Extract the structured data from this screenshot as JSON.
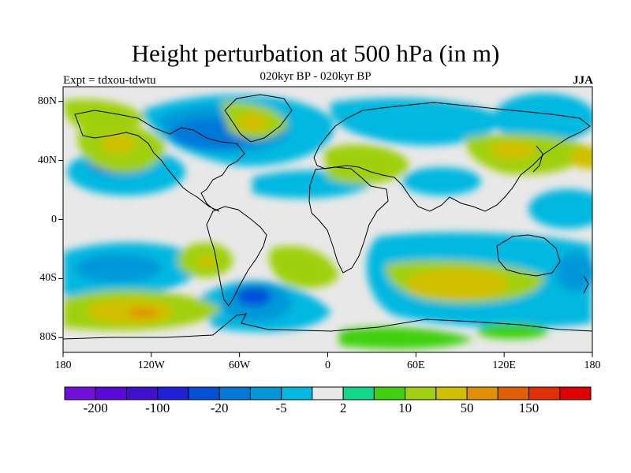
{
  "title": "Height perturbation at 500 hPa (in m)",
  "subtitle": "020kyr BP - 020kyr BP",
  "expt_label": "Expt = tdxou-tdwtu",
  "season": "JJA",
  "map": {
    "projection": "cylindrical equidistant",
    "lon_range": [
      -180,
      180
    ],
    "lat_range": [
      -90,
      90
    ],
    "lat_ticks": [
      {
        "value": 80,
        "label": "80N"
      },
      {
        "value": 40,
        "label": "40N"
      },
      {
        "value": 0,
        "label": "0"
      },
      {
        "value": -40,
        "label": "40S"
      },
      {
        "value": -80,
        "label": "80S"
      }
    ],
    "lon_ticks": [
      {
        "value": -180,
        "label": "180"
      },
      {
        "value": -120,
        "label": "120W"
      },
      {
        "value": -60,
        "label": "60W"
      },
      {
        "value": 0,
        "label": "0"
      },
      {
        "value": 60,
        "label": "60E"
      },
      {
        "value": 120,
        "label": "120E"
      },
      {
        "value": 180,
        "label": "180"
      }
    ],
    "background_color": "#e8e8e8",
    "coastline_color": "#000000"
  },
  "colorbar": {
    "colors": [
      "#7010d8",
      "#5a0ad8",
      "#4010d0",
      "#2020d8",
      "#0050d8",
      "#0078d8",
      "#0098d8",
      "#00b8e0",
      "#e8e8e8",
      "#10d888",
      "#40d010",
      "#a0d010",
      "#d0c000",
      "#e09000",
      "#e06000",
      "#e03000",
      "#e00000"
    ],
    "labels": [
      {
        "boundary": 1,
        "text": "-200"
      },
      {
        "boundary": 3,
        "text": "-100"
      },
      {
        "boundary": 5,
        "text": "-20"
      },
      {
        "boundary": 7,
        "text": "-5"
      },
      {
        "boundary": 9,
        "text": "2"
      },
      {
        "boundary": 11,
        "text": "10"
      },
      {
        "boundary": 13,
        "text": "50"
      },
      {
        "boundary": 15,
        "text": "150"
      }
    ]
  }
}
